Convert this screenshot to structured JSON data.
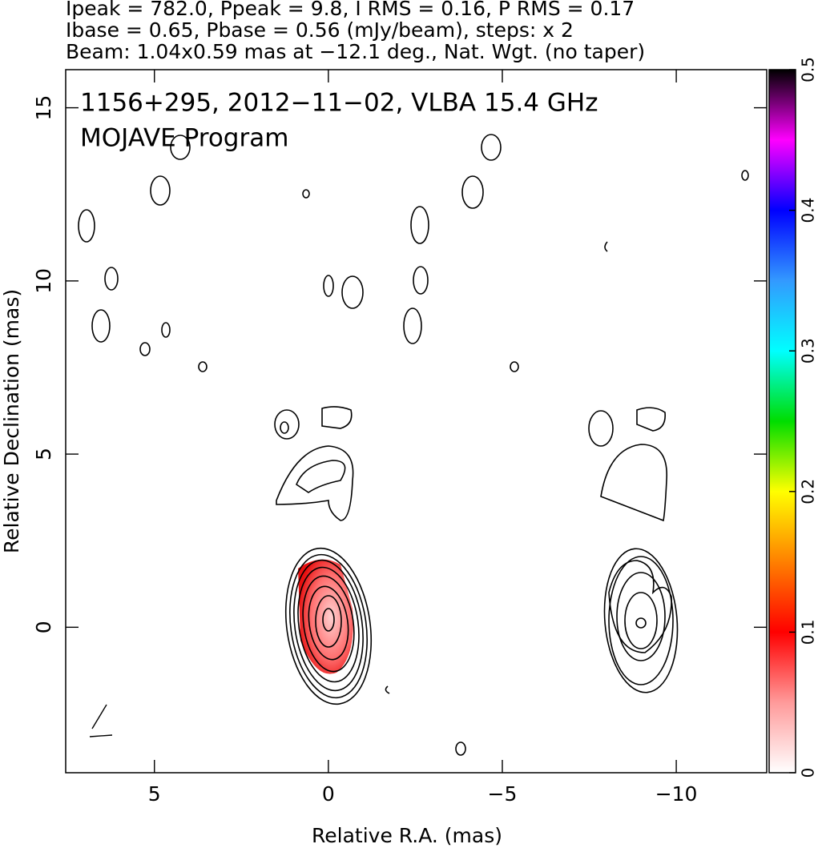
{
  "chart_data": {
    "type": "contour",
    "title_lines": [
      "Ipeak = 782.0, Ppeak = 9.8, I RMS = 0.16, P RMS = 0.17",
      "Ibase = 0.65, Pbase = 0.56 (mJy/beam), steps: x 2",
      "Beam: 1.04x0.59 mas at −12.1 deg., Nat. Wgt. (no taper)"
    ],
    "annotations": [
      "1156+295, 2012−11−02, VLBA 15.4 GHz",
      "MOJAVE Program"
    ],
    "xlabel": "Relative R.A. (mas)",
    "ylabel": "Relative Declination (mas)",
    "xlim": [
      7.55,
      -12.6
    ],
    "xticks": [
      5,
      0,
      {
        "value": -5,
        "label": "−5"
      },
      {
        "value": -10,
        "label": "−10"
      }
    ],
    "ylim": [
      -4.2,
      16.1
    ],
    "yticks": [
      0,
      5,
      10,
      15
    ],
    "colorbar_lim": [
      0,
      0.5
    ],
    "colorbar_ticks": [
      0,
      0.1,
      0.2,
      0.3,
      0.4,
      0.5
    ]
  }
}
